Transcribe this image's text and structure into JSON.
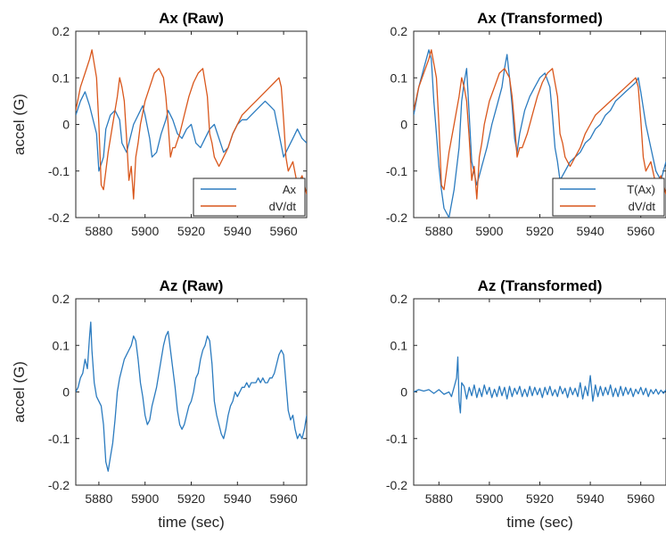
{
  "colors": {
    "series1": "#2b7bbf",
    "series2": "#d9571c",
    "axis": "#262626"
  },
  "chart_data": [
    {
      "type": "line",
      "title": "Ax (Raw)",
      "xlabel": "",
      "ylabel": "accel (G)",
      "xlim": [
        5870,
        5970
      ],
      "ylim": [
        -0.2,
        0.2
      ],
      "xticks": [
        5880,
        5900,
        5920,
        5940,
        5960
      ],
      "xtick_labels": [
        "5880",
        "5900",
        "5920",
        "5940",
        "5960"
      ],
      "yticks": [
        -0.2,
        -0.1,
        0,
        0.1,
        0.2
      ],
      "ytick_labels": [
        "-0.2",
        "-0.1",
        "0",
        "0.1",
        "0.2"
      ],
      "legend": "bottom-right",
      "series": [
        {
          "name": "Ax",
          "x": [
            5870,
            5872,
            5874,
            5876,
            5877,
            5879,
            5880,
            5882,
            5883,
            5885,
            5887,
            5889,
            5890,
            5892,
            5893,
            5895,
            5897,
            5899,
            5900,
            5902,
            5903,
            5905,
            5907,
            5909,
            5910,
            5912,
            5914,
            5916,
            5918,
            5920,
            5922,
            5924,
            5926,
            5928,
            5930,
            5932,
            5934,
            5936,
            5938,
            5940,
            5942,
            5944,
            5946,
            5948,
            5950,
            5952,
            5954,
            5956,
            5958,
            5960,
            5962,
            5964,
            5966,
            5968,
            5970
          ],
          "y": [
            0.02,
            0.05,
            0.07,
            0.04,
            0.02,
            -0.02,
            -0.1,
            -0.07,
            -0.01,
            0.02,
            0.03,
            0.01,
            -0.04,
            -0.06,
            -0.04,
            0.0,
            0.02,
            0.04,
            0.02,
            -0.03,
            -0.07,
            -0.06,
            -0.02,
            0.01,
            0.03,
            0.01,
            -0.02,
            -0.03,
            -0.01,
            0.0,
            -0.04,
            -0.05,
            -0.03,
            -0.01,
            0.0,
            -0.03,
            -0.06,
            -0.05,
            -0.02,
            0.0,
            0.01,
            0.01,
            0.02,
            0.03,
            0.04,
            0.05,
            0.04,
            0.03,
            -0.02,
            -0.07,
            -0.05,
            -0.03,
            -0.01,
            -0.03,
            -0.04
          ]
        },
        {
          "name": "dV/dt",
          "x": [
            5870,
            5872,
            5874,
            5876,
            5877,
            5879,
            5880,
            5881,
            5882,
            5883,
            5884,
            5886,
            5888,
            5889,
            5890,
            5891,
            5892,
            5893,
            5894,
            5895,
            5896,
            5897,
            5898,
            5900,
            5902,
            5904,
            5906,
            5908,
            5909,
            5910,
            5911,
            5912,
            5913,
            5915,
            5917,
            5919,
            5921,
            5923,
            5925,
            5927,
            5928,
            5929,
            5930,
            5931,
            5932,
            5934,
            5936,
            5938,
            5940,
            5942,
            5944,
            5946,
            5948,
            5950,
            5952,
            5954,
            5956,
            5958,
            5959,
            5960,
            5961,
            5962,
            5964,
            5966,
            5968,
            5970
          ],
          "y": [
            0.03,
            0.08,
            0.11,
            0.14,
            0.16,
            0.1,
            0.0,
            -0.13,
            -0.14,
            -0.1,
            -0.06,
            0.0,
            0.06,
            0.1,
            0.08,
            0.05,
            -0.03,
            -0.12,
            -0.09,
            -0.16,
            -0.07,
            -0.04,
            0.0,
            0.05,
            0.08,
            0.11,
            0.12,
            0.1,
            0.06,
            0.0,
            -0.07,
            -0.05,
            -0.05,
            -0.02,
            0.02,
            0.06,
            0.09,
            0.11,
            0.12,
            0.06,
            -0.02,
            -0.04,
            -0.07,
            -0.08,
            -0.09,
            -0.07,
            -0.05,
            -0.02,
            0.0,
            0.02,
            0.03,
            0.04,
            0.05,
            0.06,
            0.07,
            0.08,
            0.09,
            0.1,
            0.08,
            0.01,
            -0.07,
            -0.1,
            -0.08,
            -0.13,
            -0.11,
            -0.15
          ]
        }
      ]
    },
    {
      "type": "line",
      "title": "Ax (Transformed)",
      "xlabel": "",
      "ylabel": "",
      "xlim": [
        5870,
        5970
      ],
      "ylim": [
        -0.2,
        0.2
      ],
      "xticks": [
        5880,
        5900,
        5920,
        5940,
        5960
      ],
      "xtick_labels": [
        "5880",
        "5900",
        "5920",
        "5940",
        "5960"
      ],
      "yticks": [
        -0.2,
        -0.1,
        0,
        0.1,
        0.2
      ],
      "ytick_labels": [
        "-0.2",
        "-0.1",
        "0",
        "0.1",
        "0.2"
      ],
      "legend": "bottom-right",
      "series": [
        {
          "name": "T(Ax)",
          "x": [
            5870,
            5872,
            5874,
            5876,
            5877,
            5878,
            5879,
            5880,
            5881,
            5882,
            5884,
            5886,
            5888,
            5889,
            5890,
            5891,
            5892,
            5893,
            5895,
            5897,
            5899,
            5901,
            5903,
            5905,
            5906,
            5907,
            5908,
            5909,
            5910,
            5911,
            5912,
            5914,
            5916,
            5918,
            5920,
            5922,
            5924,
            5925,
            5926,
            5927,
            5928,
            5930,
            5932,
            5934,
            5936,
            5938,
            5940,
            5942,
            5944,
            5946,
            5948,
            5950,
            5952,
            5954,
            5956,
            5958,
            5959,
            5960,
            5962,
            5964,
            5966,
            5968,
            5970
          ],
          "y": [
            0.02,
            0.08,
            0.12,
            0.16,
            0.14,
            0.05,
            -0.02,
            -0.09,
            -0.14,
            -0.18,
            -0.2,
            -0.14,
            -0.05,
            0.05,
            0.09,
            0.12,
            0.02,
            -0.08,
            -0.13,
            -0.09,
            -0.05,
            0.0,
            0.04,
            0.08,
            0.12,
            0.15,
            0.1,
            0.04,
            -0.03,
            -0.06,
            -0.02,
            0.03,
            0.06,
            0.08,
            0.1,
            0.11,
            0.08,
            0.02,
            -0.05,
            -0.08,
            -0.12,
            -0.1,
            -0.08,
            -0.07,
            -0.06,
            -0.04,
            -0.03,
            -0.01,
            0.0,
            0.02,
            0.03,
            0.05,
            0.06,
            0.07,
            0.08,
            0.09,
            0.1,
            0.07,
            0.0,
            -0.05,
            -0.1,
            -0.12,
            -0.08
          ]
        },
        {
          "name": "dV/dt",
          "x": [
            5870,
            5872,
            5874,
            5876,
            5877,
            5879,
            5880,
            5881,
            5882,
            5883,
            5884,
            5886,
            5888,
            5889,
            5890,
            5891,
            5892,
            5893,
            5894,
            5895,
            5896,
            5897,
            5898,
            5900,
            5902,
            5904,
            5906,
            5908,
            5909,
            5910,
            5911,
            5912,
            5913,
            5915,
            5917,
            5919,
            5921,
            5923,
            5925,
            5927,
            5928,
            5929,
            5930,
            5931,
            5932,
            5934,
            5936,
            5938,
            5940,
            5942,
            5944,
            5946,
            5948,
            5950,
            5952,
            5954,
            5956,
            5958,
            5959,
            5960,
            5961,
            5962,
            5964,
            5966,
            5968,
            5970
          ],
          "y": [
            0.03,
            0.08,
            0.11,
            0.14,
            0.16,
            0.1,
            0.0,
            -0.13,
            -0.14,
            -0.1,
            -0.06,
            0.0,
            0.06,
            0.1,
            0.08,
            0.05,
            -0.03,
            -0.12,
            -0.09,
            -0.16,
            -0.07,
            -0.04,
            0.0,
            0.05,
            0.08,
            0.11,
            0.12,
            0.1,
            0.06,
            0.0,
            -0.07,
            -0.05,
            -0.05,
            -0.02,
            0.02,
            0.06,
            0.09,
            0.11,
            0.12,
            0.06,
            -0.02,
            -0.04,
            -0.07,
            -0.08,
            -0.09,
            -0.07,
            -0.05,
            -0.02,
            0.0,
            0.02,
            0.03,
            0.04,
            0.05,
            0.06,
            0.07,
            0.08,
            0.09,
            0.1,
            0.08,
            0.01,
            -0.07,
            -0.1,
            -0.08,
            -0.13,
            -0.11,
            -0.15
          ]
        }
      ]
    },
    {
      "type": "line",
      "title": "Az (Raw)",
      "xlabel": "time (sec)",
      "ylabel": "accel (G)",
      "xlim": [
        5870,
        5970
      ],
      "ylim": [
        -0.2,
        0.2
      ],
      "xticks": [
        5880,
        5900,
        5920,
        5940,
        5960
      ],
      "xtick_labels": [
        "5880",
        "5900",
        "5920",
        "5940",
        "5960"
      ],
      "yticks": [
        -0.2,
        -0.1,
        0,
        0.1,
        0.2
      ],
      "ytick_labels": [
        "-0.2",
        "-0.1",
        "0",
        "0.1",
        "0.2"
      ],
      "series": [
        {
          "x": [
            5870,
            5871,
            5872,
            5873,
            5874,
            5875,
            5876,
            5876.5,
            5877,
            5878,
            5879,
            5880,
            5881,
            5882,
            5883,
            5884,
            5885,
            5886,
            5887,
            5888,
            5889,
            5890,
            5891,
            5892,
            5893,
            5894,
            5895,
            5896,
            5897,
            5898,
            5899,
            5900,
            5901,
            5902,
            5903,
            5904,
            5905,
            5906,
            5907,
            5908,
            5909,
            5910,
            5911,
            5912,
            5913,
            5914,
            5915,
            5916,
            5917,
            5918,
            5919,
            5920,
            5921,
            5922,
            5923,
            5924,
            5925,
            5926,
            5927,
            5928,
            5929,
            5930,
            5931,
            5932,
            5933,
            5934,
            5935,
            5936,
            5937,
            5938,
            5939,
            5940,
            5941,
            5942,
            5943,
            5944,
            5945,
            5946,
            5947,
            5948,
            5949,
            5950,
            5951,
            5952,
            5953,
            5954,
            5955,
            5956,
            5957,
            5958,
            5959,
            5960,
            5961,
            5962,
            5963,
            5964,
            5965,
            5966,
            5967,
            5968,
            5969,
            5970
          ],
          "y": [
            0.0,
            0.01,
            0.03,
            0.04,
            0.07,
            0.05,
            0.12,
            0.15,
            0.09,
            0.02,
            -0.01,
            -0.02,
            -0.03,
            -0.07,
            -0.15,
            -0.17,
            -0.14,
            -0.11,
            -0.06,
            0.0,
            0.03,
            0.05,
            0.07,
            0.08,
            0.09,
            0.1,
            0.12,
            0.11,
            0.07,
            0.02,
            -0.01,
            -0.05,
            -0.07,
            -0.06,
            -0.03,
            -0.01,
            0.01,
            0.04,
            0.07,
            0.1,
            0.12,
            0.13,
            0.09,
            0.05,
            0.01,
            -0.04,
            -0.07,
            -0.08,
            -0.07,
            -0.05,
            -0.03,
            -0.02,
            0.0,
            0.03,
            0.04,
            0.07,
            0.09,
            0.1,
            0.12,
            0.11,
            0.06,
            -0.02,
            -0.05,
            -0.07,
            -0.09,
            -0.1,
            -0.08,
            -0.05,
            -0.03,
            -0.02,
            0.0,
            -0.01,
            0.0,
            0.01,
            0.01,
            0.02,
            0.01,
            0.02,
            0.02,
            0.02,
            0.03,
            0.02,
            0.03,
            0.02,
            0.02,
            0.03,
            0.03,
            0.04,
            0.06,
            0.08,
            0.09,
            0.08,
            0.02,
            -0.04,
            -0.06,
            -0.05,
            -0.08,
            -0.1,
            -0.09,
            -0.1,
            -0.08,
            -0.05
          ]
        }
      ]
    },
    {
      "type": "line",
      "title": "Az (Transformed)",
      "xlabel": "time (sec)",
      "ylabel": "",
      "xlim": [
        5870,
        5970
      ],
      "ylim": [
        -0.2,
        0.2
      ],
      "xticks": [
        5880,
        5900,
        5920,
        5940,
        5960
      ],
      "xtick_labels": [
        "5880",
        "5900",
        "5920",
        "5940",
        "5960"
      ],
      "yticks": [
        -0.2,
        -0.1,
        0,
        0.1,
        0.2
      ],
      "ytick_labels": [
        "-0.2",
        "-0.1",
        "0",
        "0.1",
        "0.2"
      ],
      "series": [
        {
          "x": [
            5870,
            5872,
            5874,
            5876,
            5878,
            5880,
            5882,
            5884,
            5885,
            5886,
            5887,
            5887.5,
            5888,
            5888.5,
            5889,
            5890,
            5891,
            5892,
            5893,
            5894,
            5895,
            5896,
            5897,
            5898,
            5899,
            5900,
            5901,
            5902,
            5903,
            5904,
            5905,
            5906,
            5907,
            5908,
            5909,
            5910,
            5911,
            5912,
            5913,
            5914,
            5915,
            5916,
            5917,
            5918,
            5919,
            5920,
            5921,
            5922,
            5923,
            5924,
            5925,
            5926,
            5927,
            5928,
            5929,
            5930,
            5931,
            5932,
            5933,
            5934,
            5935,
            5936,
            5937,
            5938,
            5939,
            5940,
            5941,
            5942,
            5943,
            5944,
            5945,
            5946,
            5947,
            5948,
            5949,
            5950,
            5951,
            5952,
            5953,
            5954,
            5955,
            5956,
            5957,
            5958,
            5959,
            5960,
            5961,
            5962,
            5963,
            5964,
            5965,
            5966,
            5967,
            5968,
            5969,
            5970
          ],
          "y": [
            0.0,
            0.005,
            0.002,
            0.005,
            -0.003,
            0.005,
            -0.005,
            0.0,
            -0.01,
            0.01,
            0.03,
            0.075,
            -0.02,
            -0.045,
            0.02,
            0.012,
            -0.015,
            0.01,
            -0.008,
            0.015,
            -0.012,
            0.008,
            -0.01,
            0.015,
            -0.005,
            0.01,
            -0.012,
            0.006,
            -0.01,
            0.012,
            -0.008,
            0.01,
            -0.015,
            0.012,
            -0.01,
            0.008,
            -0.005,
            0.012,
            -0.01,
            0.006,
            -0.01,
            0.012,
            -0.008,
            0.01,
            -0.006,
            0.008,
            -0.012,
            0.01,
            -0.006,
            0.012,
            -0.008,
            0.005,
            -0.01,
            0.012,
            -0.004,
            0.008,
            -0.012,
            0.01,
            -0.006,
            0.008,
            -0.01,
            0.02,
            -0.015,
            0.012,
            -0.008,
            0.035,
            -0.02,
            0.015,
            -0.01,
            0.012,
            -0.008,
            0.01,
            -0.006,
            0.015,
            -0.01,
            0.008,
            -0.01,
            0.012,
            -0.008,
            0.01,
            -0.005,
            0.008,
            -0.01,
            0.006,
            -0.004,
            0.01,
            -0.006,
            0.008,
            -0.01,
            0.005,
            -0.004,
            0.006,
            -0.005,
            0.004,
            -0.003,
            0.005
          ]
        }
      ]
    }
  ]
}
